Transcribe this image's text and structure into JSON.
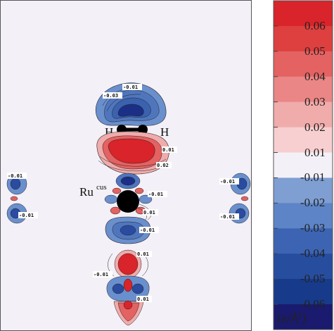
{
  "atoms": {
    "h_left": "H",
    "h_right": "H",
    "ru_main": "Ru",
    "ru_sup": "cus"
  },
  "colorbar": {
    "ticks": [
      "0.06",
      "0.05",
      "0.04",
      "0.03",
      "0.02",
      "0.01",
      "-0.01",
      "-0.02",
      "-0.03",
      "-0.04",
      "-0.05",
      "-0.06"
    ],
    "colors": [
      "#d8242a",
      "#de3f3f",
      "#e46262",
      "#ea8686",
      "#f0abab",
      "#f7cfd0",
      "#f4f0f7",
      "#7f9ed2",
      "#5d84c6",
      "#3d64b2",
      "#274d9f",
      "#173a8a",
      "#1a1a6e"
    ],
    "unit_prefix": "(e/",
    "unit_letter": "Å",
    "unit_exp": "3",
    "unit_suffix": ")"
  },
  "contour_labels": {
    "top1": "-0.01",
    "top2": "-0.03",
    "mid1": "0.01",
    "mid2": "0.02",
    "left1": "-0.01",
    "left2": "-0.01",
    "right1": "-0.01",
    "right2": "-0.01",
    "ru1": "-0.01",
    "ru2": "0.01",
    "ru3": "-0.01",
    "low1": "0.01",
    "low2": "-0.01",
    "low3": "0.01"
  },
  "colors": {
    "background": "#f4f0f7",
    "positive": "#d8242a",
    "negative": "#2a52a6",
    "atom": "#000000"
  }
}
